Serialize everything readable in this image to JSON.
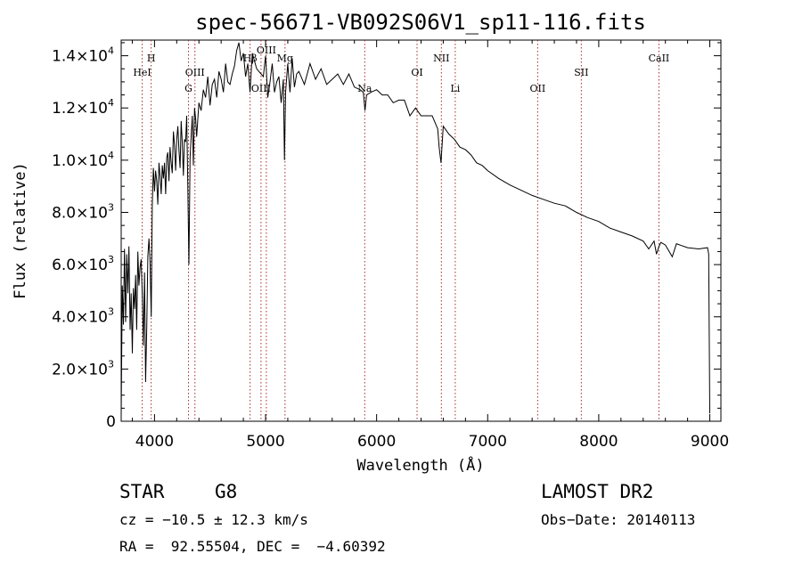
{
  "chart_data": {
    "type": "line",
    "title": "spec-56671-VB092S06V1_sp11-116.fits",
    "xlabel": "Wavelength (Å)",
    "ylabel": "Flux (relative)",
    "xlim": [
      3700,
      9100
    ],
    "ylim": [
      0,
      14600
    ],
    "x_ticks": [
      4000,
      5000,
      6000,
      7000,
      8000,
      9000
    ],
    "x_tick_labels": [
      "4000",
      "5000",
      "6000",
      "7000",
      "8000",
      "9000"
    ],
    "y_ticks": [
      0,
      2000,
      4000,
      6000,
      8000,
      10000,
      12000,
      14000
    ],
    "y_tick_labels": [
      {
        "mant": "0",
        "exp": ""
      },
      {
        "mant": "2.0×10",
        "exp": "3"
      },
      {
        "mant": "4.0×10",
        "exp": "3"
      },
      {
        "mant": "6.0×10",
        "exp": "3"
      },
      {
        "mant": "8.0×10",
        "exp": "3"
      },
      {
        "mant": "1.0×10",
        "exp": "4"
      },
      {
        "mant": "1.2×10",
        "exp": "4"
      },
      {
        "mant": "1.4×10",
        "exp": "4"
      }
    ],
    "grid": false,
    "series": [
      {
        "x": [
          3700,
          3710,
          3720,
          3730,
          3740,
          3750,
          3760,
          3770,
          3780,
          3790,
          3800,
          3810,
          3820,
          3830,
          3840,
          3850,
          3860,
          3870,
          3880,
          3890,
          3900,
          3910,
          3920,
          3930,
          3940,
          3950,
          3960,
          3970,
          3980,
          3990,
          4000,
          4010,
          4020,
          4030,
          4040,
          4050,
          4060,
          4070,
          4080,
          4090,
          4100,
          4110,
          4120,
          4130,
          4140,
          4150,
          4160,
          4170,
          4180,
          4190,
          4200,
          4210,
          4220,
          4230,
          4240,
          4250,
          4260,
          4270,
          4280,
          4290,
          4300,
          4310,
          4320,
          4330,
          4340,
          4350,
          4360,
          4370,
          4380,
          4400,
          4420,
          4440,
          4460,
          4480,
          4500,
          4520,
          4540,
          4560,
          4580,
          4600,
          4620,
          4640,
          4660,
          4680,
          4700,
          4720,
          4740,
          4760,
          4780,
          4800,
          4820,
          4840,
          4860,
          4880,
          4900,
          4920,
          4940,
          4960,
          4980,
          5000,
          5020,
          5040,
          5060,
          5080,
          5100,
          5120,
          5140,
          5160,
          5170,
          5180,
          5200,
          5220,
          5240,
          5260,
          5280,
          5300,
          5350,
          5400,
          5450,
          5500,
          5550,
          5600,
          5650,
          5700,
          5750,
          5800,
          5850,
          5880,
          5895,
          5910,
          5950,
          6000,
          6050,
          6100,
          6150,
          6200,
          6250,
          6300,
          6350,
          6400,
          6450,
          6500,
          6550,
          6563,
          6580,
          6600,
          6650,
          6700,
          6750,
          6800,
          6850,
          6900,
          6950,
          7000,
          7100,
          7200,
          7300,
          7400,
          7500,
          7600,
          7700,
          7800,
          7900,
          8000,
          8100,
          8200,
          8300,
          8400,
          8450,
          8498,
          8520,
          8542,
          8560,
          8600,
          8662,
          8700,
          8800,
          8900,
          8980,
          8990,
          9000
        ],
        "y": [
          200,
          5200,
          3700,
          6600,
          3800,
          6400,
          4900,
          6700,
          3500,
          4900,
          2600,
          5100,
          4300,
          5600,
          3500,
          6500,
          5200,
          5900,
          6200,
          4800,
          2900,
          5700,
          1500,
          3600,
          6300,
          7000,
          6100,
          4000,
          8300,
          9700,
          8800,
          9600,
          9200,
          8300,
          9900,
          9400,
          8700,
          9800,
          9300,
          9900,
          8700,
          10100,
          10300,
          9200,
          10500,
          9900,
          9500,
          11100,
          10600,
          9600,
          10800,
          11300,
          10400,
          9700,
          11500,
          10700,
          9400,
          10800,
          10700,
          11700,
          8900,
          6000,
          10100,
          10900,
          11700,
          9800,
          12000,
          11600,
          10900,
          12200,
          11900,
          12700,
          12400,
          13200,
          12100,
          12900,
          13100,
          12400,
          13400,
          13100,
          12600,
          13700,
          13000,
          12900,
          13300,
          13600,
          14200,
          14500,
          13800,
          14100,
          13200,
          13700,
          12600,
          14100,
          13800,
          13500,
          13400,
          13300,
          13200,
          14000,
          12400,
          13000,
          13700,
          12600,
          13000,
          13200,
          12200,
          13100,
          10000,
          12600,
          13700,
          12600,
          13900,
          12800,
          13300,
          13400,
          12900,
          13700,
          13100,
          13500,
          12900,
          13100,
          13300,
          12900,
          13300,
          12800,
          12700,
          12600,
          11900,
          12500,
          12600,
          12700,
          12500,
          12500,
          12200,
          12300,
          12300,
          11700,
          12000,
          11700,
          11700,
          11700,
          11200,
          10500,
          9900,
          11300,
          11000,
          10800,
          10500,
          10400,
          10200,
          9900,
          9800,
          9600,
          9300,
          9050,
          8850,
          8650,
          8500,
          8350,
          8250,
          8000,
          7800,
          7650,
          7400,
          7250,
          7100,
          6900,
          6600,
          6900,
          6400,
          6700,
          6850,
          6750,
          6300,
          6800,
          6650,
          6600,
          6650,
          6400,
          300
        ]
      }
    ],
    "emission_lines": [
      {
        "label": "HeI",
        "x": 3889,
        "label_row": 2
      },
      {
        "label": "H",
        "x": 3970,
        "label_row": 1
      },
      {
        "label": "OIII",
        "x": 4364,
        "label_row": 2
      },
      {
        "label": "G",
        "x": 4306,
        "label_row": 3
      },
      {
        "label": "Hβ",
        "x": 4861,
        "label_row": 1
      },
      {
        "label": "OIII",
        "x": 4959,
        "label_row": 3
      },
      {
        "label": "OIII",
        "x": 5007,
        "label_row": 0
      },
      {
        "label": "Mg",
        "x": 5175,
        "label_row": 1
      },
      {
        "label": "Na",
        "x": 5893,
        "label_row": 3
      },
      {
        "label": "OI",
        "x": 6364,
        "label_row": 2
      },
      {
        "label": "NII",
        "x": 6583,
        "label_row": 1
      },
      {
        "label": "Li",
        "x": 6708,
        "label_row": 3
      },
      {
        "label": "OII",
        "x": 7450,
        "label_row": 3
      },
      {
        "label": "SII",
        "x": 7843,
        "label_row": 2
      },
      {
        "label": "CaII",
        "x": 8542,
        "label_row": 1
      }
    ]
  },
  "info": {
    "object_type": "STAR",
    "subclass": "G8",
    "survey": "LAMOST DR2",
    "cz_line": "cz = −10.5 ± 12.3 km/s",
    "obs_date": "Obs−Date: 20140113",
    "coord_line": "RA =  92.55504, DEC =  −4.60392"
  },
  "colors": {
    "spectrum": "#000000",
    "line_marker": "#a52a2a",
    "axes": "#000000"
  }
}
